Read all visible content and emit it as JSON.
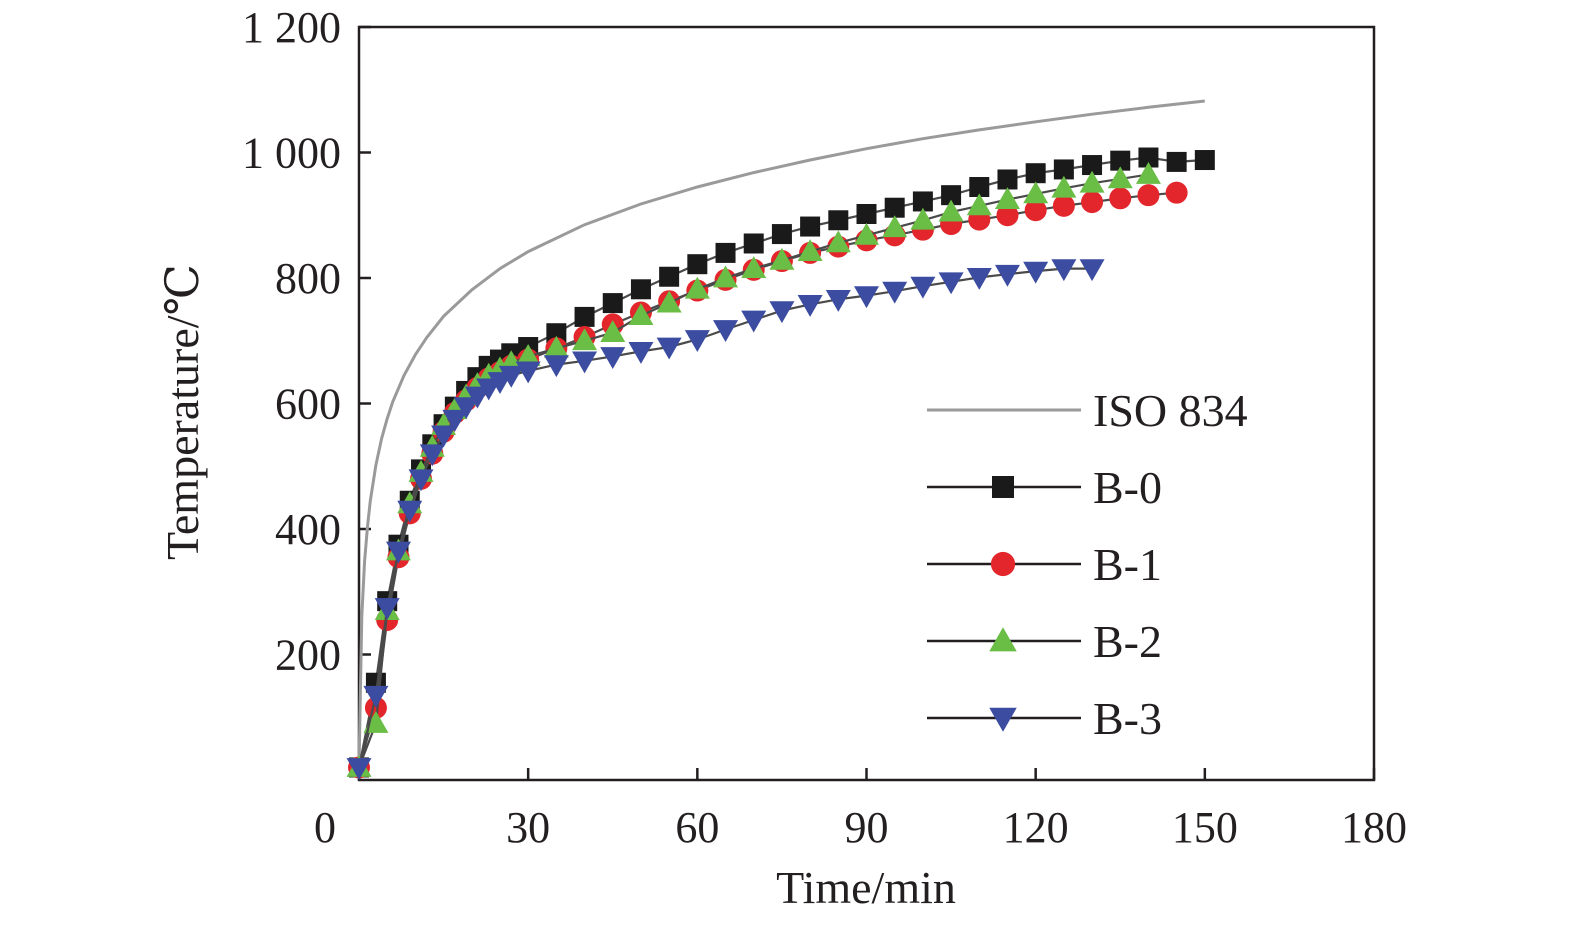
{
  "chart_data": {
    "type": "line",
    "xlabel": "Time/min",
    "ylabel": "Temperature/℃",
    "xlim": [
      0,
      180
    ],
    "ylim": [
      0,
      1200
    ],
    "xticks": [
      0,
      30,
      60,
      90,
      120,
      150,
      180
    ],
    "xtick_labels": [
      "0",
      "30",
      "60",
      "90",
      "120",
      "150",
      "180"
    ],
    "yticks": [
      200,
      400,
      600,
      800,
      1000,
      1200
    ],
    "ytick_labels": [
      "200",
      "400",
      "600",
      "800",
      "1 000",
      "1 200"
    ],
    "grid": false,
    "legend_position": "right",
    "series": [
      {
        "name": "ISO 834",
        "color": "#9a9a9a",
        "marker": "none",
        "x": [
          0,
          0.5,
          1,
          1.5,
          2,
          3,
          4,
          5,
          6,
          8,
          10,
          12,
          15,
          20,
          25,
          30,
          40,
          50,
          60,
          70,
          80,
          90,
          100,
          110,
          120,
          130,
          140,
          150
        ],
        "y": [
          20,
          261,
          349,
          404,
          445,
          502,
          544,
          576,
          603,
          645,
          678,
          705,
          739,
          781,
          815,
          842,
          885,
          918,
          945,
          968,
          988,
          1006,
          1022,
          1036,
          1049,
          1061,
          1072,
          1082
        ]
      },
      {
        "name": "B-0",
        "color": "#1a1a1a",
        "marker": "square",
        "x": [
          0,
          3,
          5,
          7,
          9,
          11,
          13,
          15,
          17,
          19,
          21,
          23,
          25,
          27,
          30,
          35,
          40,
          45,
          50,
          55,
          60,
          65,
          70,
          75,
          80,
          85,
          90,
          95,
          100,
          105,
          110,
          115,
          120,
          125,
          130,
          135,
          140,
          145,
          150
        ],
        "y": [
          20,
          155,
          285,
          375,
          445,
          495,
          535,
          567,
          595,
          620,
          642,
          660,
          670,
          680,
          690,
          712,
          738,
          760,
          782,
          802,
          822,
          840,
          855,
          870,
          882,
          892,
          902,
          912,
          922,
          932,
          945,
          957,
          967,
          973,
          980,
          987,
          992,
          985,
          988
        ]
      },
      {
        "name": "B-1",
        "color": "#e3262b",
        "marker": "circle",
        "x": [
          0,
          3,
          5,
          7,
          9,
          11,
          13,
          15,
          17,
          19,
          21,
          23,
          25,
          27,
          30,
          35,
          40,
          45,
          50,
          55,
          60,
          65,
          70,
          75,
          80,
          85,
          90,
          95,
          100,
          105,
          110,
          115,
          120,
          125,
          130,
          135,
          140,
          145
        ],
        "y": [
          20,
          115,
          255,
          355,
          425,
          480,
          520,
          555,
          585,
          605,
          625,
          640,
          650,
          660,
          670,
          688,
          706,
          726,
          745,
          763,
          780,
          797,
          813,
          827,
          840,
          850,
          860,
          868,
          877,
          886,
          893,
          900,
          908,
          915,
          921,
          927,
          932,
          936
        ]
      },
      {
        "name": "B-2",
        "color": "#6abd45",
        "marker": "triangle-up",
        "x": [
          0,
          3,
          5,
          7,
          9,
          11,
          13,
          15,
          17,
          19,
          21,
          23,
          25,
          27,
          30,
          35,
          40,
          45,
          50,
          55,
          60,
          65,
          70,
          75,
          80,
          85,
          90,
          95,
          100,
          105,
          110,
          115,
          120,
          125,
          130,
          135,
          140
        ],
        "y": [
          20,
          90,
          270,
          365,
          440,
          490,
          530,
          565,
          590,
          612,
          630,
          645,
          655,
          665,
          675,
          688,
          700,
          713,
          740,
          760,
          782,
          800,
          815,
          828,
          842,
          856,
          868,
          880,
          892,
          905,
          915,
          925,
          934,
          943,
          951,
          958,
          965
        ]
      },
      {
        "name": "B-3",
        "color": "#3b4ca1",
        "marker": "triangle-down",
        "x": [
          0,
          3,
          5,
          7,
          9,
          11,
          13,
          15,
          17,
          19,
          21,
          23,
          25,
          27,
          30,
          35,
          40,
          45,
          50,
          55,
          60,
          65,
          70,
          75,
          80,
          85,
          90,
          95,
          100,
          105,
          110,
          115,
          120,
          125,
          130
        ],
        "y": [
          20,
          135,
          275,
          365,
          430,
          480,
          520,
          550,
          575,
          595,
          612,
          625,
          635,
          645,
          652,
          662,
          668,
          675,
          683,
          690,
          702,
          718,
          733,
          748,
          758,
          766,
          772,
          779,
          787,
          794,
          801,
          806,
          811,
          815,
          815
        ]
      }
    ]
  }
}
